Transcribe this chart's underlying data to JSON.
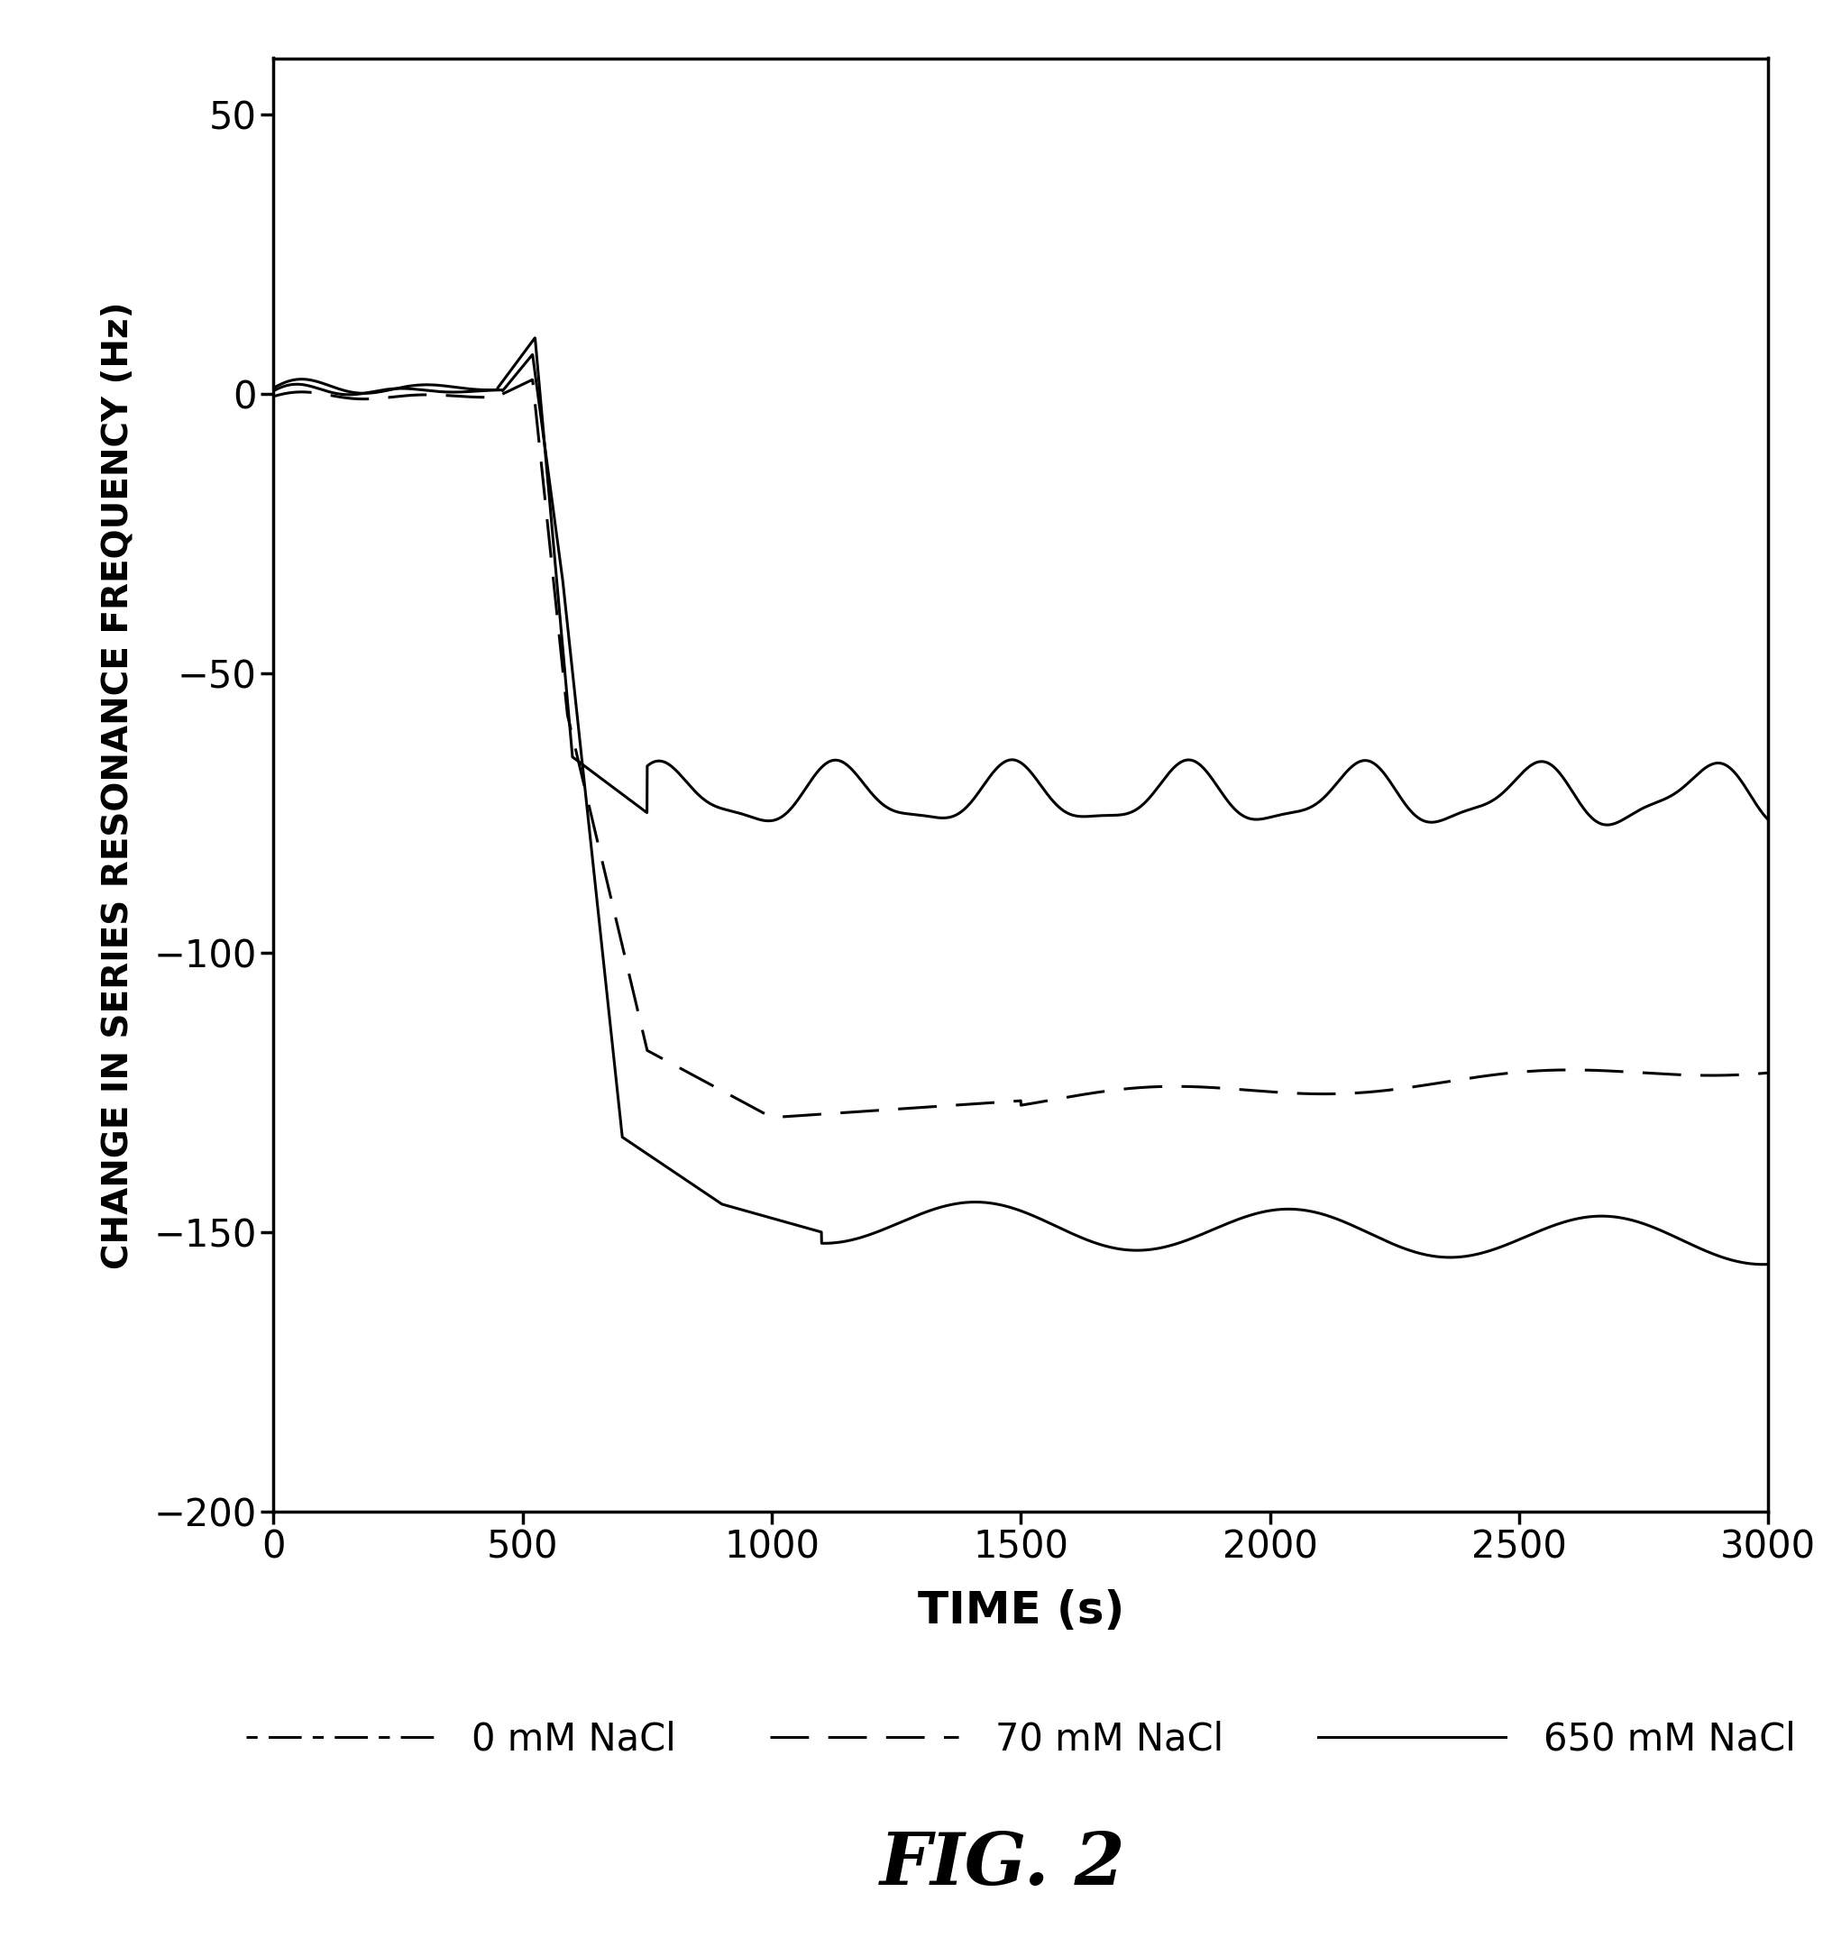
{
  "title": "FIG. 2",
  "xlabel": "TIME (s)",
  "ylabel": "CHANGE IN SERIES RESONANCE FREQUENCY (Hz)",
  "xlim": [
    0,
    3000
  ],
  "ylim": [
    -200,
    60
  ],
  "yticks": [
    -200,
    -150,
    -100,
    -50,
    0,
    50
  ],
  "xticks": [
    0,
    500,
    1000,
    1500,
    2000,
    2500,
    3000
  ],
  "background_color": "#ffffff",
  "line_color": "#000000",
  "nacl_0_final": -153,
  "nacl_70_final": -128,
  "nacl_650_final": -70,
  "legend_labels": [
    "0 mM NaCl",
    "70 mM NaCl",
    "650 mM NaCl"
  ]
}
